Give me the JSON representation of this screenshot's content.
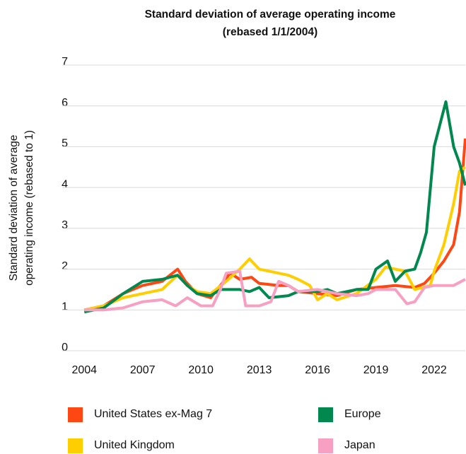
{
  "chart_data": {
    "type": "line",
    "title": [
      "Standard deviation of average operating income",
      "(rebased 1/1/2004)"
    ],
    "y_label": [
      "Standard deviation of average",
      "operating income (rebased to 1)"
    ],
    "xlim": [
      2003.3,
      2023.6
    ],
    "xticks": [
      2004,
      2007,
      2010,
      2013,
      2016,
      2019,
      2022
    ],
    "ylim": [
      0,
      7
    ],
    "yticks": [
      0,
      1,
      2,
      3,
      4,
      5,
      6,
      7
    ],
    "grid": true,
    "series": [
      {
        "name": "United States ex-Mag 7",
        "color": "#ff4713",
        "x": [
          2004,
          2005,
          2006,
          2007,
          2008,
          2008.8,
          2009.2,
          2009.8,
          2010.5,
          2011,
          2011.5,
          2012,
          2012.6,
          2013,
          2014,
          2014.5,
          2015,
          2016,
          2017,
          2018,
          2019,
          2020,
          2021,
          2021.5,
          2022,
          2022.5,
          2023,
          2023.3,
          2023.6
        ],
        "values": [
          1.0,
          1.1,
          1.4,
          1.6,
          1.7,
          2.0,
          1.7,
          1.4,
          1.3,
          1.6,
          1.9,
          1.75,
          1.8,
          1.65,
          1.6,
          1.6,
          1.45,
          1.4,
          1.35,
          1.5,
          1.55,
          1.6,
          1.55,
          1.65,
          1.9,
          2.2,
          2.6,
          3.4,
          5.2
        ]
      },
      {
        "name": "United Kingdom",
        "color": "#ffce00",
        "x": [
          2004,
          2005,
          2006,
          2007,
          2008,
          2008.8,
          2009.3,
          2009.8,
          2010.5,
          2011.3,
          2012,
          2012.5,
          2013,
          2014,
          2014.5,
          2015,
          2015.6,
          2016,
          2016.5,
          2017,
          2018,
          2019,
          2019.5,
          2020.5,
          2021,
          2021.8,
          2022,
          2022.5,
          2023,
          2023.3,
          2023.6
        ],
        "values": [
          1.0,
          1.1,
          1.3,
          1.4,
          1.5,
          1.85,
          1.6,
          1.45,
          1.4,
          1.7,
          2.0,
          2.25,
          2.0,
          1.9,
          1.85,
          1.75,
          1.6,
          1.25,
          1.4,
          1.25,
          1.4,
          1.75,
          2.05,
          1.95,
          1.5,
          1.6,
          1.95,
          2.6,
          3.6,
          4.4,
          4.5
        ]
      },
      {
        "name": "Europe",
        "color": "#00884f",
        "x": [
          2004,
          2005,
          2006,
          2007,
          2008,
          2008.8,
          2009.3,
          2009.8,
          2010.5,
          2011,
          2012,
          2012.5,
          2013,
          2013.5,
          2014.5,
          2015,
          2016,
          2016.5,
          2017,
          2018,
          2018.6,
          2019,
          2019.6,
          2020,
          2020.5,
          2021,
          2021.3,
          2021.6,
          2022,
          2022.6,
          2023,
          2023.3,
          2023.6
        ],
        "values": [
          0.95,
          1.05,
          1.4,
          1.7,
          1.75,
          1.85,
          1.6,
          1.4,
          1.35,
          1.5,
          1.5,
          1.45,
          1.55,
          1.3,
          1.35,
          1.45,
          1.45,
          1.5,
          1.4,
          1.5,
          1.5,
          2.0,
          2.2,
          1.7,
          1.95,
          2.0,
          2.4,
          2.9,
          5.0,
          6.1,
          5.0,
          4.6,
          4.05
        ]
      },
      {
        "name": "Japan",
        "color": "#f7a0c2",
        "x": [
          2004,
          2005,
          2006,
          2007,
          2008,
          2008.7,
          2009.3,
          2010,
          2010.6,
          2011,
          2011.3,
          2012,
          2012.3,
          2013,
          2013.6,
          2014,
          2014.5,
          2015,
          2016,
          2017,
          2018,
          2018.6,
          2019,
          2020,
          2020.6,
          2021,
          2021.5,
          2022,
          2022.5,
          2023,
          2023.6
        ],
        "values": [
          1.0,
          1.0,
          1.05,
          1.2,
          1.25,
          1.1,
          1.3,
          1.1,
          1.1,
          1.5,
          1.9,
          1.95,
          1.1,
          1.1,
          1.2,
          1.7,
          1.6,
          1.45,
          1.5,
          1.4,
          1.35,
          1.4,
          1.5,
          1.5,
          1.15,
          1.2,
          1.55,
          1.6,
          1.6,
          1.6,
          1.75
        ]
      }
    ]
  }
}
